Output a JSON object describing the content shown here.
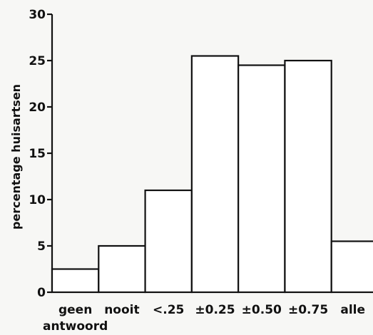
{
  "chart_data": {
    "type": "bar",
    "title": "",
    "xlabel": "",
    "ylabel": "percentage huisartsen",
    "ylim": [
      0,
      30
    ],
    "yticks": [
      0,
      5,
      10,
      15,
      20,
      25,
      30
    ],
    "grid": false,
    "categories": [
      "geen\nantwoord",
      "nooit",
      "<.25",
      "±0.25",
      "±0.50",
      "±0.75",
      "alle"
    ],
    "values": [
      2.5,
      5,
      11,
      25.5,
      24.5,
      25,
      5.5
    ],
    "colors": {
      "bar_fill": "#ffffff",
      "bar_stroke": "#111111",
      "background": "#f7f7f5"
    }
  }
}
